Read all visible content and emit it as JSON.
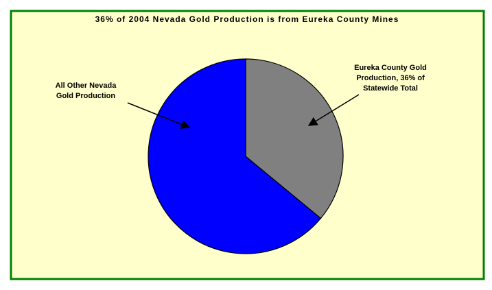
{
  "chart_data": {
    "type": "pie",
    "title": "36% of 2004 Nevada Gold Production is from Eureka County Mines",
    "categories": [
      "Eureka County Gold Production, 36% of Statewide Total",
      "All Other Nevada Gold Production"
    ],
    "values": [
      36,
      64
    ],
    "colors": [
      "#808080",
      "#0000ff"
    ]
  }
}
